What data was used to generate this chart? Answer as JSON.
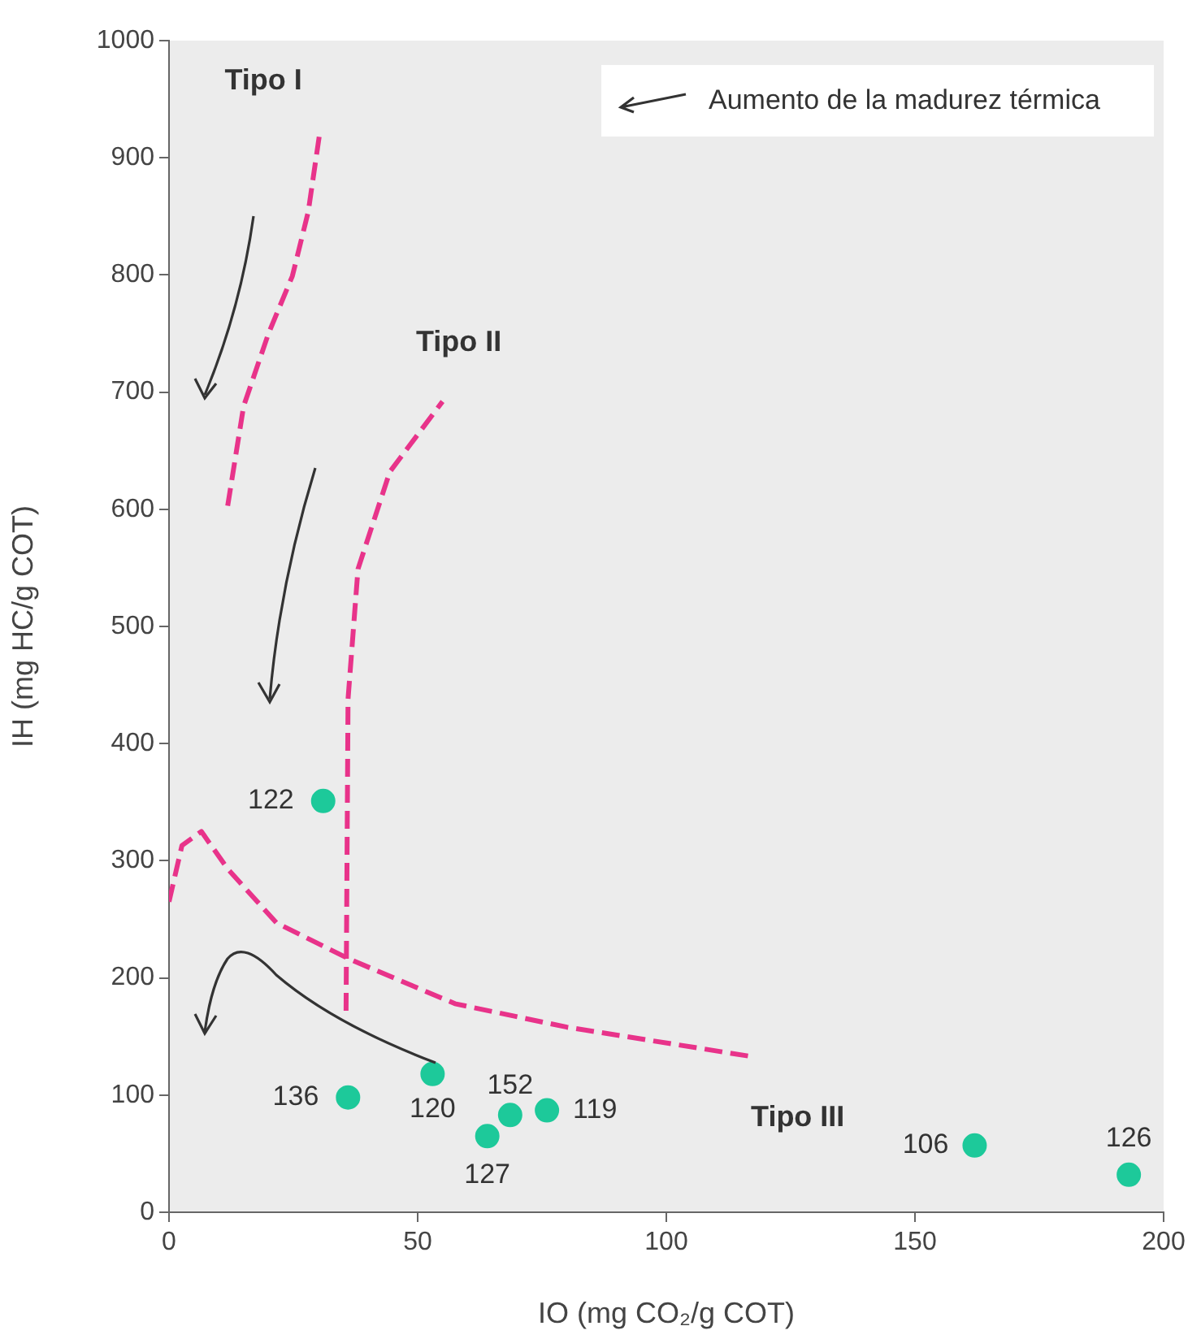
{
  "chart_data": {
    "type": "scatter",
    "xlabel": "IO (mg CO₂/g COT)",
    "ylabel": "IH (mg HC/g COT)",
    "xlim": [
      0,
      200
    ],
    "xticks": [
      0,
      50,
      100,
      150,
      200
    ],
    "ylim": [
      0,
      1000
    ],
    "yticks": [
      0,
      100,
      200,
      300,
      400,
      500,
      600,
      700,
      800,
      900,
      1000
    ],
    "grid": false,
    "legend": false,
    "annotations": [
      "Aumento de la madurez térmica",
      {
        "text": "122",
        "x": 31,
        "y": 351
      },
      {
        "text": "136",
        "x": 36,
        "y": 98
      },
      {
        "text": "120",
        "x": 53,
        "y": 118
      },
      {
        "text": "152",
        "x": 68.6,
        "y": 83
      },
      {
        "text": "127",
        "x": 64,
        "y": 65
      },
      {
        "text": "119",
        "x": 76,
        "y": 87
      },
      {
        "text": "106",
        "x": 162,
        "y": 57
      },
      {
        "text": "126",
        "x": 193,
        "y": 32
      }
    ],
    "series": [
      {
        "type": "scatter",
        "marker": "circle",
        "color": "#1dc99a",
        "x": [
          31,
          36,
          53,
          68.6,
          64,
          76,
          162,
          193
        ],
        "values": [
          351,
          98,
          118,
          83,
          65,
          87,
          57,
          32
        ]
      },
      {
        "type": "line",
        "name": "Tipo I",
        "color": "#e8338a",
        "line_style": "dashed",
        "marker": "none",
        "x": [
          11.8,
          15,
          20,
          24.8,
          28,
          30.4
        ],
        "values": [
          603,
          688,
          750,
          799,
          854,
          924
        ]
      },
      {
        "type": "line",
        "name": "Tipo II",
        "color": "#e8338a",
        "line_style": "dashed",
        "marker": "none",
        "x": [
          35.6,
          36,
          38,
          44.4,
          55
        ],
        "values": [
          172,
          438,
          549,
          632,
          692
        ]
      },
      {
        "type": "line",
        "name": "Tipo III",
        "color": "#e8338a",
        "line_style": "dashed",
        "marker": "none",
        "x": [
          0,
          2.6,
          6.5,
          11.8,
          21.6,
          36.3,
          57.5,
          80,
          117
        ],
        "values": [
          265,
          313,
          325,
          293,
          247,
          216,
          178,
          158,
          133
        ]
      }
    ]
  }
}
